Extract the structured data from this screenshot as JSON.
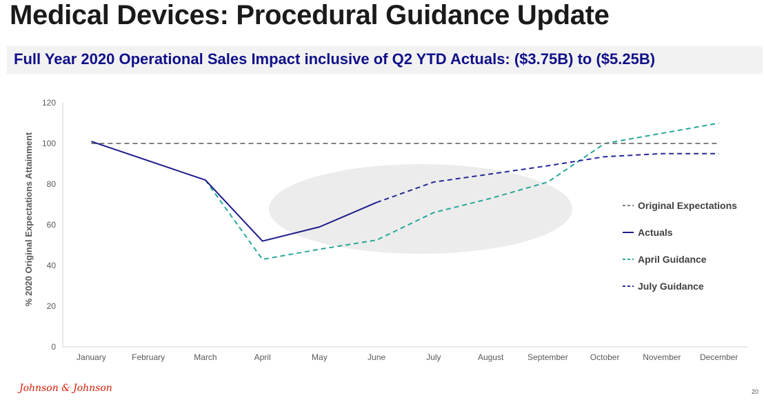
{
  "page": {
    "title": "Medical Devices: Procedural Guidance Update",
    "subtitle": "Full Year 2020 Operational Sales Impact inclusive of Q2 YTD Actuals: ($3.75B) to ($5.25B)",
    "logo": "Johnson & Johnson",
    "page_number": "20"
  },
  "colors": {
    "original": "#7f7f7f",
    "actuals": "#1b1b8a",
    "april": "#26a69a",
    "july": "#27279b",
    "highlight": "#ececec"
  },
  "chart_data": {
    "type": "line",
    "ylabel": "% 2020 Original Expectations Attainment",
    "xlabel": "",
    "ylim": [
      0,
      120
    ],
    "yticks": [
      0,
      20,
      40,
      60,
      80,
      100,
      120
    ],
    "categories": [
      "January",
      "February",
      "March",
      "April",
      "May",
      "June",
      "July",
      "August",
      "September",
      "October",
      "November",
      "December"
    ],
    "series": [
      {
        "name": "Original Expectations",
        "style": "dashed",
        "color": "#7f7f7f",
        "x": [
          "January",
          "December"
        ],
        "values": [
          100,
          100
        ]
      },
      {
        "name": "Actuals",
        "style": "solid",
        "color": "#1b1b8a",
        "x": [
          "January",
          "March",
          "April",
          "May",
          "June"
        ],
        "values": [
          101,
          82,
          52,
          59,
          71
        ]
      },
      {
        "name": "April Guidance",
        "style": "dashed",
        "color": "#26a69a",
        "x": [
          "March",
          "April",
          "May",
          "June",
          "July",
          "August",
          "September",
          "October",
          "November",
          "December"
        ],
        "values": [
          82,
          43,
          48,
          52.5,
          66,
          73,
          81,
          100,
          105,
          110
        ]
      },
      {
        "name": "July Guidance",
        "style": "dashed",
        "color": "#27279b",
        "x": [
          "June",
          "July",
          "August",
          "September",
          "October",
          "November",
          "December"
        ],
        "values": [
          71,
          81,
          85,
          89,
          93.5,
          95,
          95
        ]
      }
    ],
    "legend": "right",
    "grid": false
  }
}
